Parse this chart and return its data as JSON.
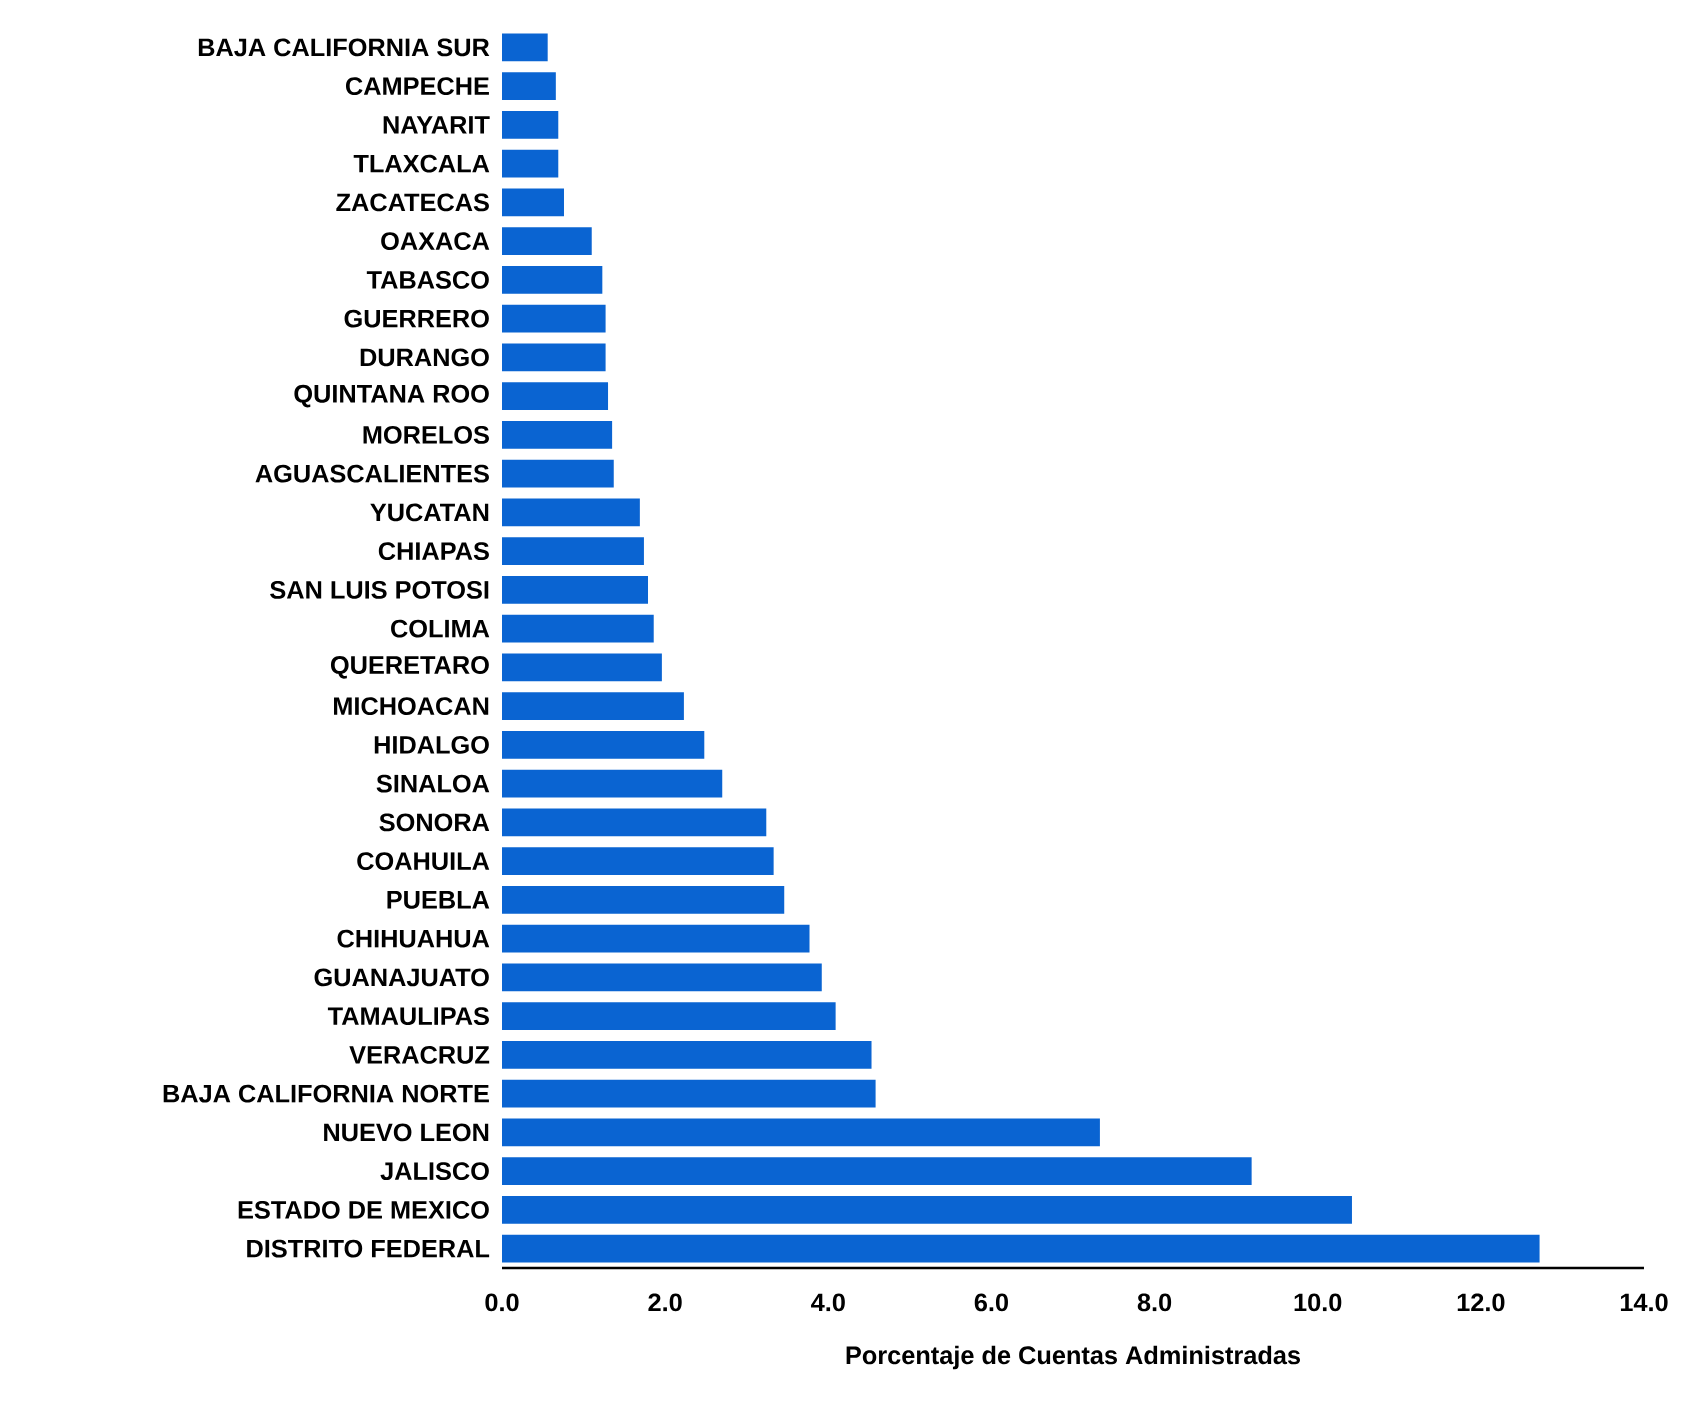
{
  "chart_data": {
    "type": "bar",
    "orientation": "horizontal",
    "xlabel": "Porcentaje de Cuentas Administradas",
    "categories": [
      "BAJA CALIFORNIA SUR",
      "CAMPECHE",
      "NAYARIT",
      "TLAXCALA",
      "ZACATECAS",
      "OAXACA",
      "TABASCO",
      "GUERRERO",
      "DURANGO",
      "QUINTANA ROO",
      "MORELOS",
      "AGUASCALIENTES",
      "YUCATAN",
      "CHIAPAS",
      "SAN LUIS POTOSI",
      "COLIMA",
      "QUERETARO",
      "MICHOACAN",
      "HIDALGO",
      "SINALOA",
      "SONORA",
      "COAHUILA",
      "PUEBLA",
      "CHIHUAHUA",
      "GUANAJUATO",
      "TAMAULIPAS",
      "VERACRUZ",
      "BAJA CALIFORNIA NORTE",
      "NUEVO LEON",
      "JALISCO",
      "ESTADO DE MEXICO",
      "DISTRITO FEDERAL"
    ],
    "values": [
      0.56,
      0.66,
      0.69,
      0.69,
      0.76,
      1.1,
      1.23,
      1.27,
      1.27,
      1.3,
      1.35,
      1.37,
      1.69,
      1.74,
      1.79,
      1.86,
      1.96,
      2.23,
      2.48,
      2.7,
      3.24,
      3.33,
      3.46,
      3.77,
      3.92,
      4.09,
      4.53,
      4.58,
      7.33,
      9.19,
      10.42,
      12.72
    ],
    "color": "#0a64d2",
    "xlim": [
      0,
      14
    ],
    "xticks": [
      {
        "value": 0,
        "label": "0.0"
      },
      {
        "value": 2,
        "label": "2.0"
      },
      {
        "value": 4,
        "label": "4.0"
      },
      {
        "value": 6,
        "label": "6.0"
      },
      {
        "value": 8,
        "label": "8.0"
      },
      {
        "value": 10,
        "label": "10.0"
      },
      {
        "value": 12,
        "label": "12.0"
      },
      {
        "value": 14,
        "label": "14.0"
      }
    ]
  }
}
